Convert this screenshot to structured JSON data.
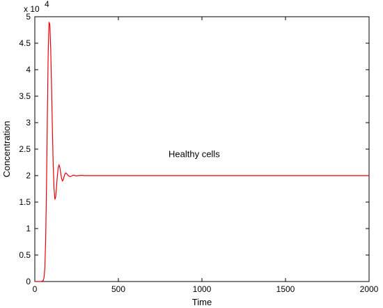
{
  "chart_data": {
    "type": "line",
    "xlabel": "Time",
    "ylabel": "Concentration",
    "xlim": [
      0,
      2000
    ],
    "ylim": [
      0,
      5
    ],
    "y_scale_label": "x 10",
    "y_scale_exponent": "4",
    "xticks": [
      0,
      500,
      1000,
      1500,
      2000
    ],
    "yticks": [
      0,
      0.5,
      1,
      1.5,
      2,
      2.5,
      3,
      3.5,
      4,
      4.5,
      5
    ],
    "grid": false,
    "annotations": [
      {
        "text": "Healthy cells",
        "x": 800,
        "y": 2.4
      }
    ],
    "series": [
      {
        "color": "#e8000b",
        "x": [
          0,
          40,
          50,
          55,
          60,
          65,
          70,
          75,
          80,
          85,
          90,
          95,
          100,
          105,
          110,
          115,
          120,
          125,
          130,
          135,
          140,
          145,
          150,
          155,
          160,
          165,
          170,
          175,
          180,
          185,
          190,
          195,
          200,
          210,
          220,
          230,
          240,
          250,
          260,
          280,
          300,
          350,
          400,
          500,
          600,
          800,
          1000,
          1500,
          2000
        ],
        "y": [
          0,
          0,
          0.02,
          0.07,
          0.25,
          0.8,
          1.8,
          3.1,
          4.3,
          4.9,
          4.85,
          4.4,
          3.7,
          2.9,
          2.2,
          1.75,
          1.55,
          1.6,
          1.8,
          2.0,
          2.15,
          2.2,
          2.15,
          2.05,
          1.95,
          1.9,
          1.92,
          1.98,
          2.03,
          2.05,
          2.04,
          2.02,
          2.0,
          1.98,
          1.99,
          2.01,
          2.0,
          1.995,
          2.0,
          2.005,
          2.0,
          2.0,
          2.0,
          2.0,
          2.0,
          2.0,
          2.0,
          2.0,
          2.0
        ]
      }
    ]
  }
}
